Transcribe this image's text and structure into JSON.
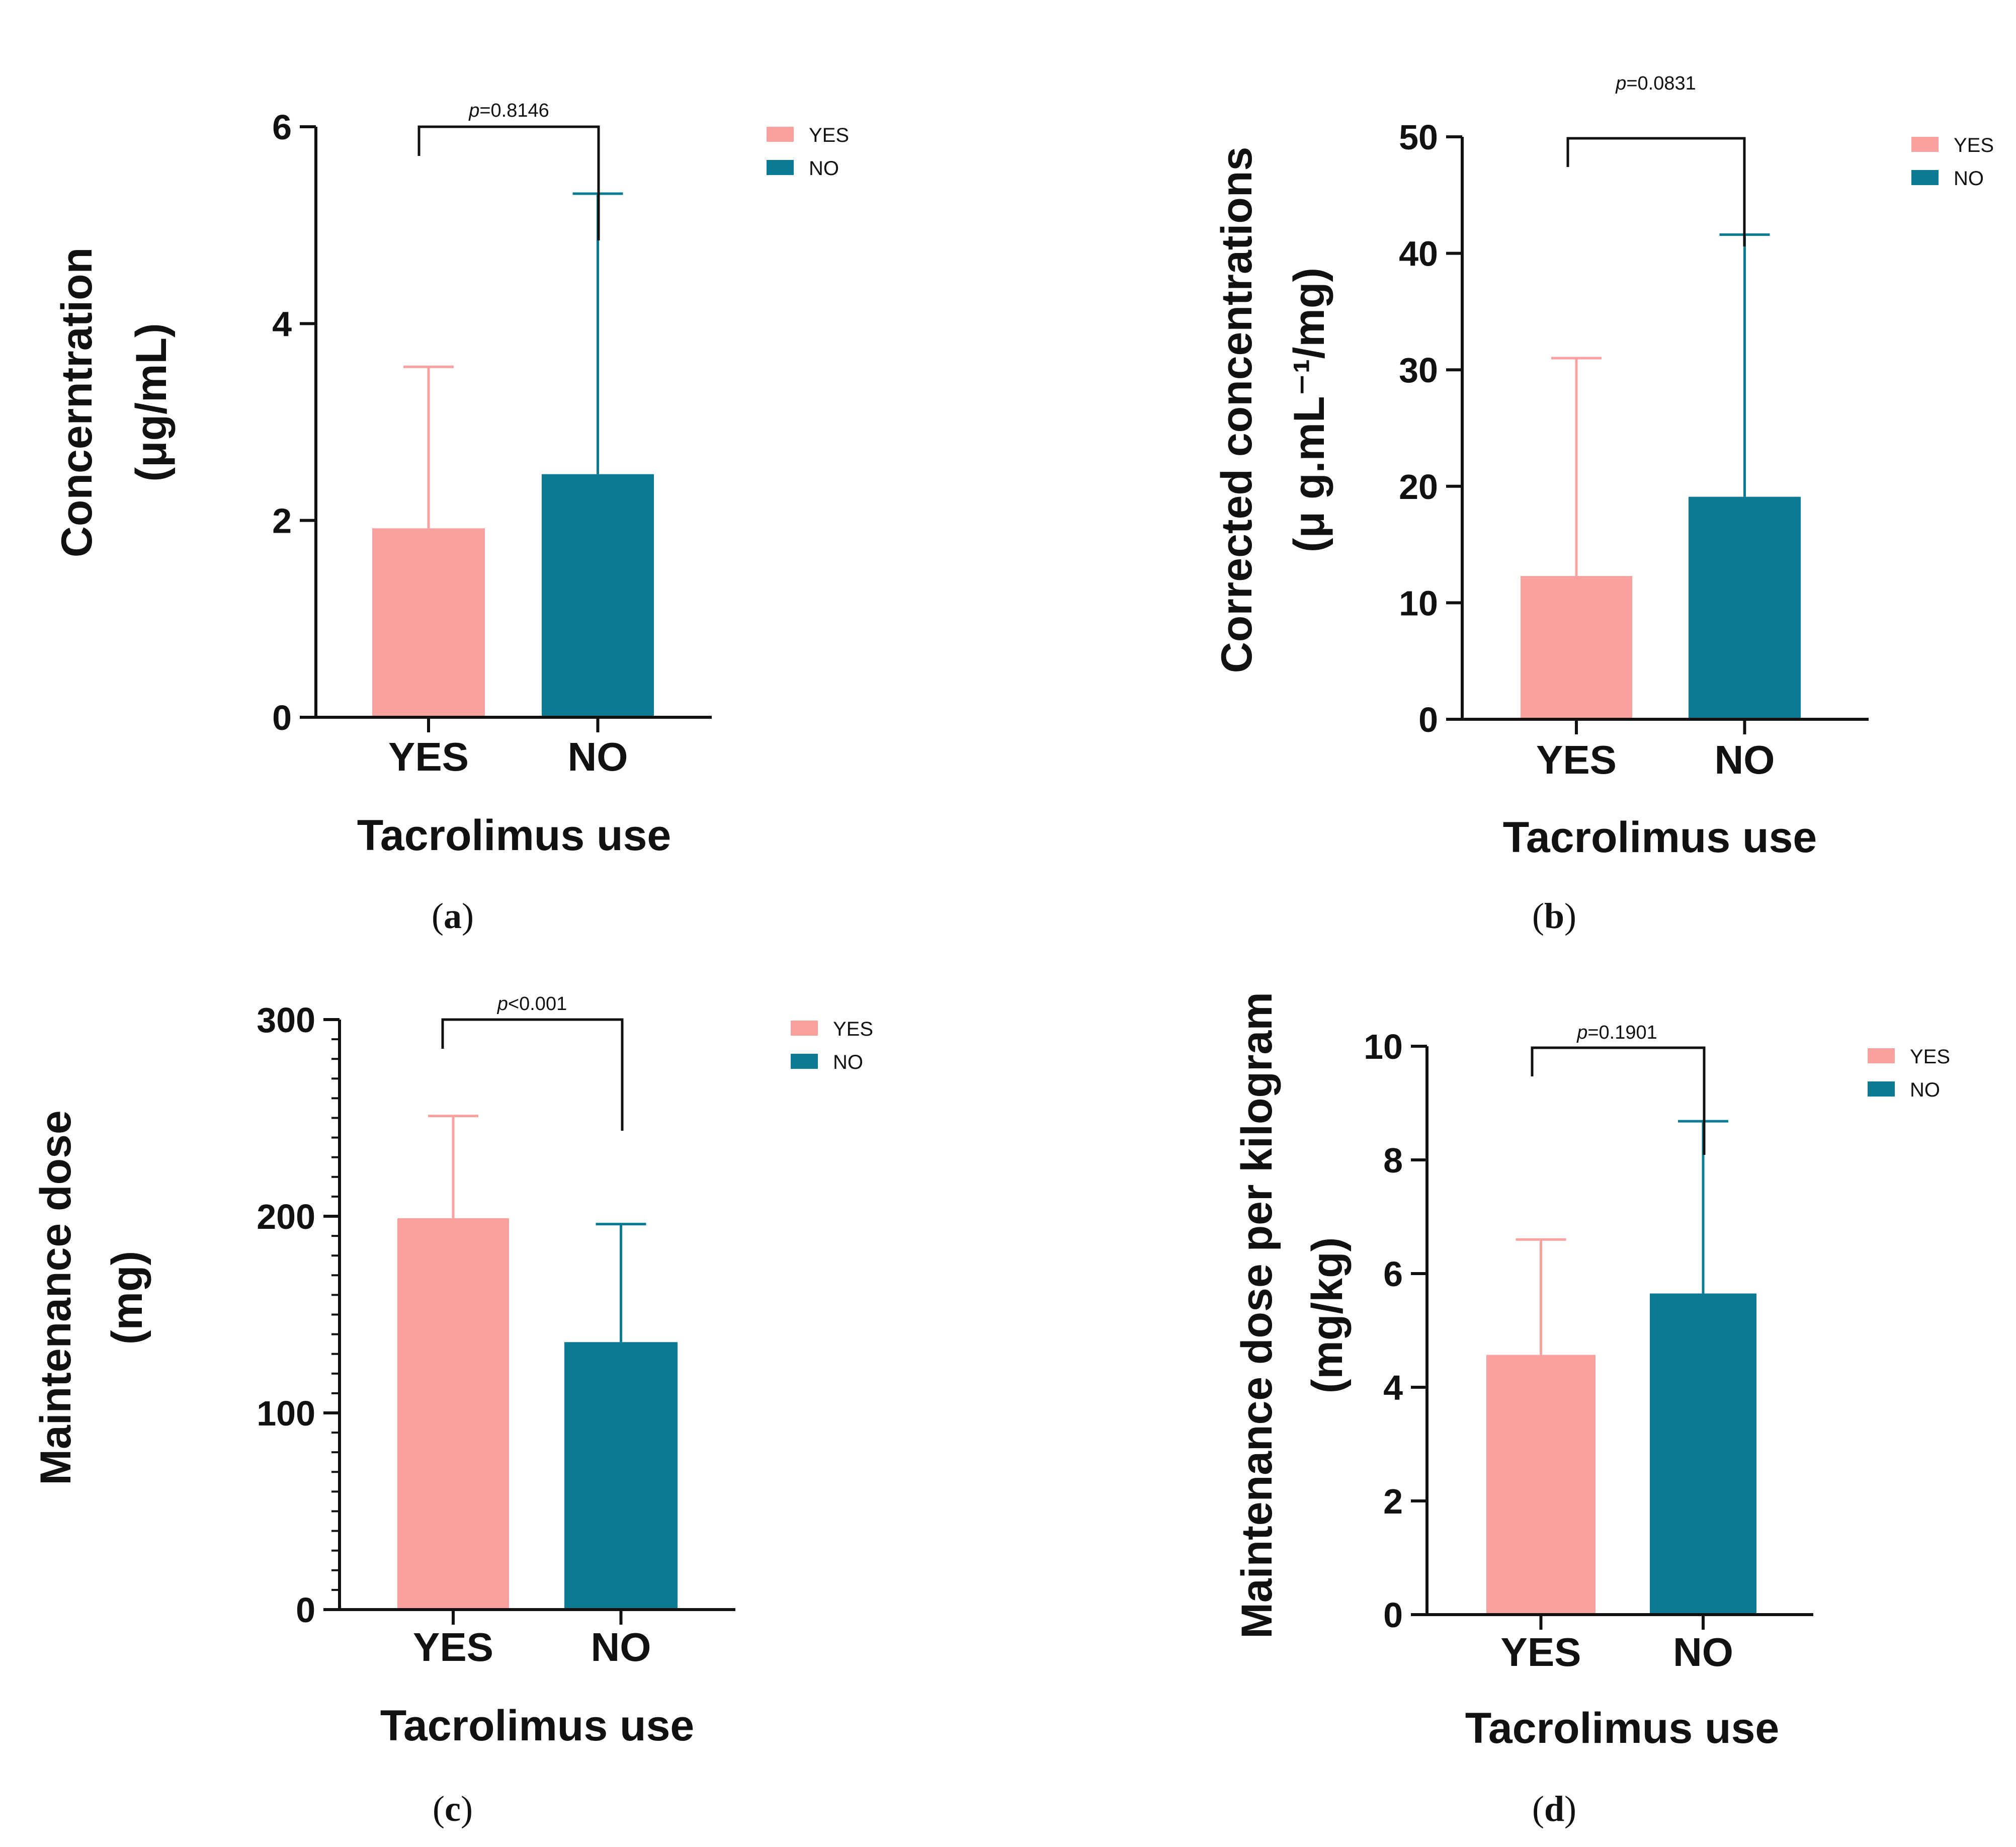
{
  "colors": {
    "yes": "#F9A19E",
    "no": "#0A7B93",
    "axis": "#111111"
  },
  "chart_data": [
    {
      "type": "bar",
      "panel": "a",
      "categories": [
        "YES",
        "NO"
      ],
      "values": [
        1.92,
        2.47
      ],
      "error_upper": [
        3.56,
        5.32
      ],
      "xlabel": "Tacrolimus use",
      "ylabel": [
        "Concerntration",
        "(μg/mL)"
      ],
      "ylim": [
        0,
        6
      ],
      "yticks": [
        0,
        2,
        4,
        6
      ],
      "minor_ticks": false,
      "pvalue": "=0.8146",
      "legend": [
        "YES",
        "NO"
      ],
      "legend_position": "top-right"
    },
    {
      "type": "bar",
      "panel": "b",
      "categories": [
        "YES",
        "NO"
      ],
      "values": [
        12.3,
        19.1
      ],
      "error_upper": [
        31.0,
        41.6
      ],
      "xlabel": "Tacrolimus use",
      "ylabel": [
        "Corrected concentrations",
        "(μ g.mL⁻¹/mg)"
      ],
      "ylim": [
        0,
        50
      ],
      "yticks": [
        0,
        10,
        20,
        30,
        40,
        50
      ],
      "minor_ticks": false,
      "pvalue": "=0.0831",
      "legend": [
        "YES",
        "NO"
      ],
      "legend_position": "top-right"
    },
    {
      "type": "bar",
      "panel": "c",
      "categories": [
        "YES",
        "NO"
      ],
      "values": [
        199,
        136
      ],
      "error_upper": [
        251,
        196
      ],
      "xlabel": "Tacrolimus use",
      "ylabel": [
        "Maintenance dose",
        "(mg)"
      ],
      "ylim": [
        0,
        300
      ],
      "yticks": [
        0,
        100,
        200,
        300
      ],
      "minor_ticks": true,
      "pvalue": "<0.001",
      "legend": [
        "YES",
        "NO"
      ],
      "legend_position": "top-right"
    },
    {
      "type": "bar",
      "panel": "d",
      "categories": [
        "YES",
        "NO"
      ],
      "values": [
        4.57,
        5.65
      ],
      "error_upper": [
        6.6,
        8.68
      ],
      "xlabel": "Tacrolimus use",
      "ylabel": [
        "Maintenance dose per kilogram",
        "(mg/kg)"
      ],
      "ylim": [
        0,
        10
      ],
      "yticks": [
        0,
        2,
        4,
        6,
        8,
        10
      ],
      "minor_ticks": false,
      "pvalue": "=0.1901",
      "legend": [
        "YES",
        "NO"
      ],
      "legend_position": "top-right"
    }
  ],
  "panel_labels": [
    "(a)",
    "(b)",
    "(c)",
    "(d)"
  ]
}
